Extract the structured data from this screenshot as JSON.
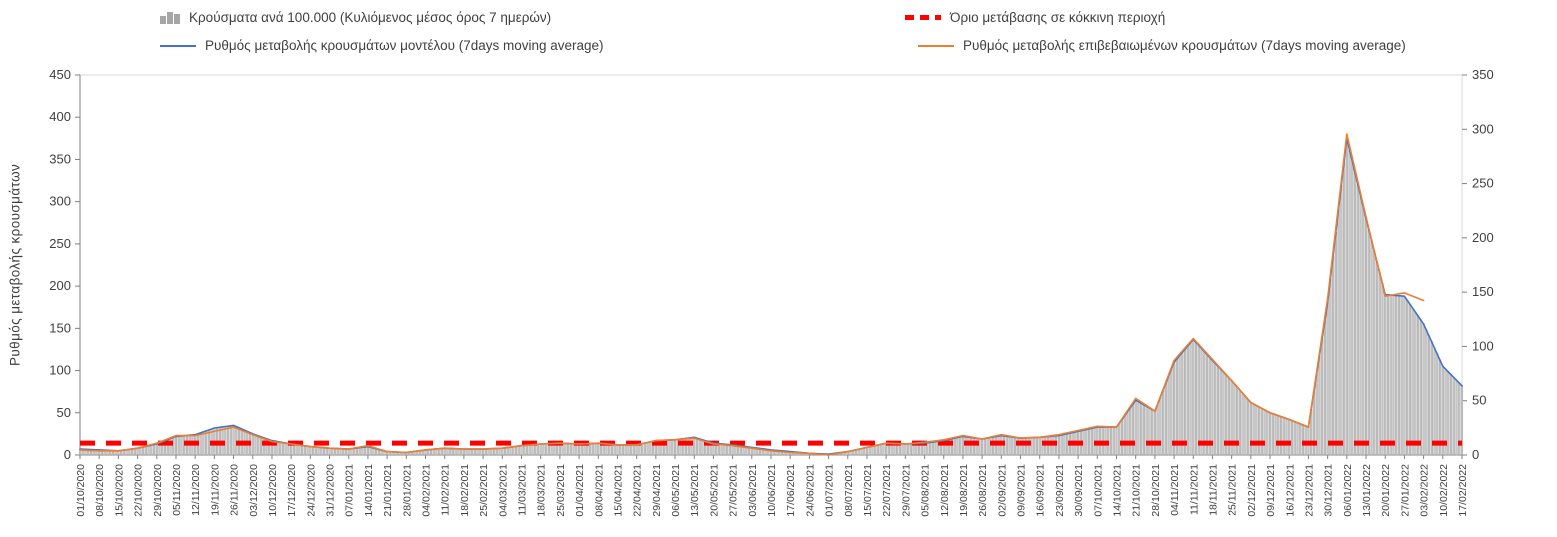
{
  "chart_data": {
    "type": "combo",
    "title": "",
    "ylabel_left": "Ρυθμός μεταβολής κρουσμάτων",
    "left_axis": {
      "min": 0,
      "max": 450,
      "step": 50
    },
    "right_axis": {
      "min": 0,
      "max": 350,
      "step": 50
    },
    "threshold": 14,
    "legend": [
      {
        "label": "Κρούσματα ανά 100.000 (Κυλιόμενος μέσος όρος 7 ημερών)",
        "type": "bar",
        "color": "#a6a6a6"
      },
      {
        "label": "Όριο μετάβασης σε κόκκινη περιοχή",
        "type": "dashed-line",
        "color": "#ff0000"
      },
      {
        "label": "Ρυθμός μεταβολής κρουσμάτων μοντέλου (7days moving average)",
        "type": "line",
        "color": "#4472c4"
      },
      {
        "label": "Ρυθμός μεταβολής επιβεβαιωμένων κρουσμάτων (7days moving average)",
        "type": "line",
        "color": "#ed7d31"
      }
    ],
    "categories": [
      "01/10/2020",
      "08/10/2020",
      "15/10/2020",
      "22/10/2020",
      "29/10/2020",
      "05/11/2020",
      "12/11/2020",
      "19/11/2020",
      "26/11/2020",
      "03/12/2020",
      "10/12/2020",
      "17/12/2020",
      "24/12/2020",
      "31/12/2020",
      "07/01/2021",
      "14/01/2021",
      "21/01/2021",
      "28/01/2021",
      "04/02/2021",
      "11/02/2021",
      "18/02/2021",
      "25/02/2021",
      "04/03/2021",
      "11/03/2021",
      "18/03/2021",
      "25/03/2021",
      "01/04/2021",
      "08/04/2021",
      "15/04/2021",
      "22/04/2021",
      "29/04/2021",
      "06/05/2021",
      "13/05/2021",
      "20/05/2021",
      "27/05/2021",
      "03/06/2021",
      "10/06/2021",
      "17/06/2021",
      "24/06/2021",
      "01/07/2021",
      "08/07/2021",
      "15/07/2021",
      "22/07/2021",
      "29/07/2021",
      "05/08/2021",
      "12/08/2021",
      "19/08/2021",
      "26/08/2021",
      "02/09/2021",
      "09/09/2021",
      "16/09/2021",
      "23/09/2021",
      "30/09/2021",
      "07/10/2021",
      "14/10/2021",
      "21/10/2021",
      "28/10/2021",
      "04/11/2021",
      "11/11/2021",
      "18/11/2021",
      "25/11/2021",
      "02/12/2021",
      "09/12/2021",
      "16/12/2021",
      "23/12/2021",
      "30/12/2021",
      "06/01/2022",
      "13/01/2022",
      "20/01/2022",
      "27/01/2022",
      "03/02/2022",
      "10/02/2022",
      "17/02/2022"
    ],
    "series": [
      {
        "name": "Ρυθμός μεταβολής κρουσμάτων μοντέλου (7days moving average)",
        "role": "model",
        "axis": "left",
        "color": "#4472c4",
        "values": [
          7,
          6,
          5,
          8,
          13,
          22,
          24,
          32,
          35,
          25,
          17,
          13,
          10,
          8,
          7,
          10,
          4,
          3,
          6,
          8,
          7,
          7,
          8,
          11,
          13,
          14,
          13,
          14,
          12,
          12,
          17,
          18,
          21,
          14,
          12,
          9,
          6,
          4,
          2,
          1,
          4,
          9,
          14,
          13,
          14,
          17,
          22,
          19,
          23,
          20,
          21,
          23,
          28,
          33,
          33,
          65,
          52,
          110,
          137,
          112,
          88,
          62,
          50,
          42,
          33,
          180,
          375,
          280,
          190,
          188,
          155,
          105,
          82
        ]
      },
      {
        "name": "Ρυθμός μεταβολής επιβεβαιωμένων κρουσμάτων (7days moving average)",
        "role": "confirmed",
        "axis": "left",
        "color": "#ed7d31",
        "values": [
          6,
          5,
          5,
          8,
          14,
          23,
          23,
          28,
          33,
          24,
          16,
          13,
          10,
          8,
          7,
          11,
          4,
          3,
          6,
          8,
          7,
          7,
          8,
          11,
          13,
          14,
          13,
          14,
          12,
          12,
          17,
          18,
          20,
          13,
          11,
          8,
          5,
          3,
          2,
          0,
          4,
          9,
          14,
          13,
          15,
          18,
          23,
          19,
          24,
          20,
          21,
          24,
          29,
          34,
          33,
          67,
          52,
          112,
          138,
          113,
          88,
          62,
          50,
          42,
          33,
          185,
          380,
          282,
          188,
          192,
          183,
          null,
          null
        ]
      },
      {
        "name": "Κρούσματα ανά 100.000 (Κυλιόμενος μέσος όρος 7 ημερών)",
        "role": "bars",
        "axis": "right",
        "color": "#c6c6c6",
        "values": [
          5,
          5,
          4,
          6,
          10,
          17,
          19,
          25,
          27,
          19,
          13,
          10,
          8,
          6,
          5,
          8,
          3,
          2,
          5,
          6,
          5,
          5,
          6,
          9,
          10,
          11,
          10,
          11,
          9,
          9,
          13,
          14,
          16,
          11,
          9,
          7,
          5,
          3,
          2,
          1,
          3,
          7,
          11,
          10,
          11,
          13,
          17,
          15,
          18,
          16,
          16,
          18,
          22,
          26,
          26,
          51,
          40,
          86,
          107,
          87,
          68,
          48,
          39,
          33,
          26,
          140,
          292,
          218,
          148,
          146,
          121,
          82,
          64
        ]
      }
    ],
    "left_ticks": [
      0,
      50,
      100,
      150,
      200,
      250,
      300,
      350,
      400,
      450
    ],
    "right_ticks": [
      0,
      50,
      100,
      150,
      200,
      250,
      300,
      350
    ]
  }
}
